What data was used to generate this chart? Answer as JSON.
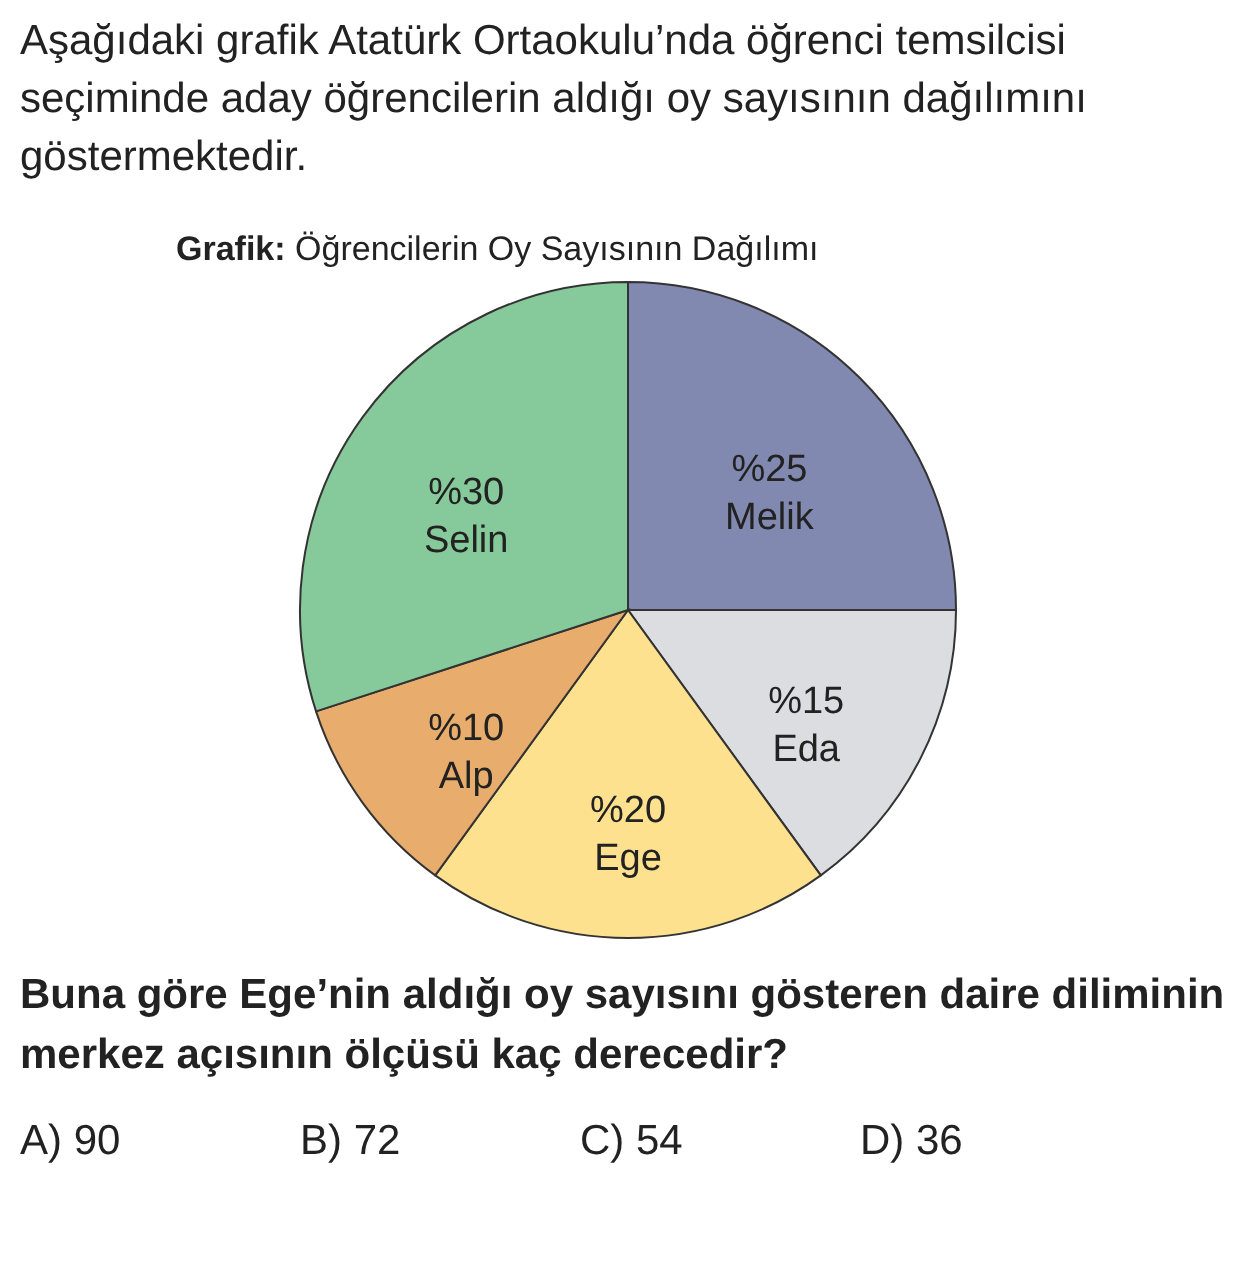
{
  "chart_data": {
    "type": "pie",
    "title": "Grafik: Öğrencilerin Oy Sayısının Dağılımı",
    "subtitle": "Aşağıdaki grafik Atatürk Ortaokulu’nda öğrenci temsilcisi seçiminde aday öğrencilerin aldığı oy sayısının dağılımını göstermektedir.",
    "categories": [
      "Melik",
      "Eda",
      "Ege",
      "Alp",
      "Selin"
    ],
    "values": [
      25,
      15,
      20,
      10,
      30
    ],
    "colors": [
      "#8189b1",
      "#dcdde0",
      "#fde18f",
      "#e8ad6d",
      "#86c99b"
    ],
    "value_labels": [
      "%25",
      "%15",
      "%20",
      "%10",
      "%30"
    ],
    "legend": false,
    "annotations": [
      "Buna göre Ege’nin aldığı oy sayısını gösteren daire diliminin merkez açısının ölçüsü kaç derecedir?",
      "A) 90",
      "B) 72",
      "C) 54",
      "D) 36"
    ]
  }
}
